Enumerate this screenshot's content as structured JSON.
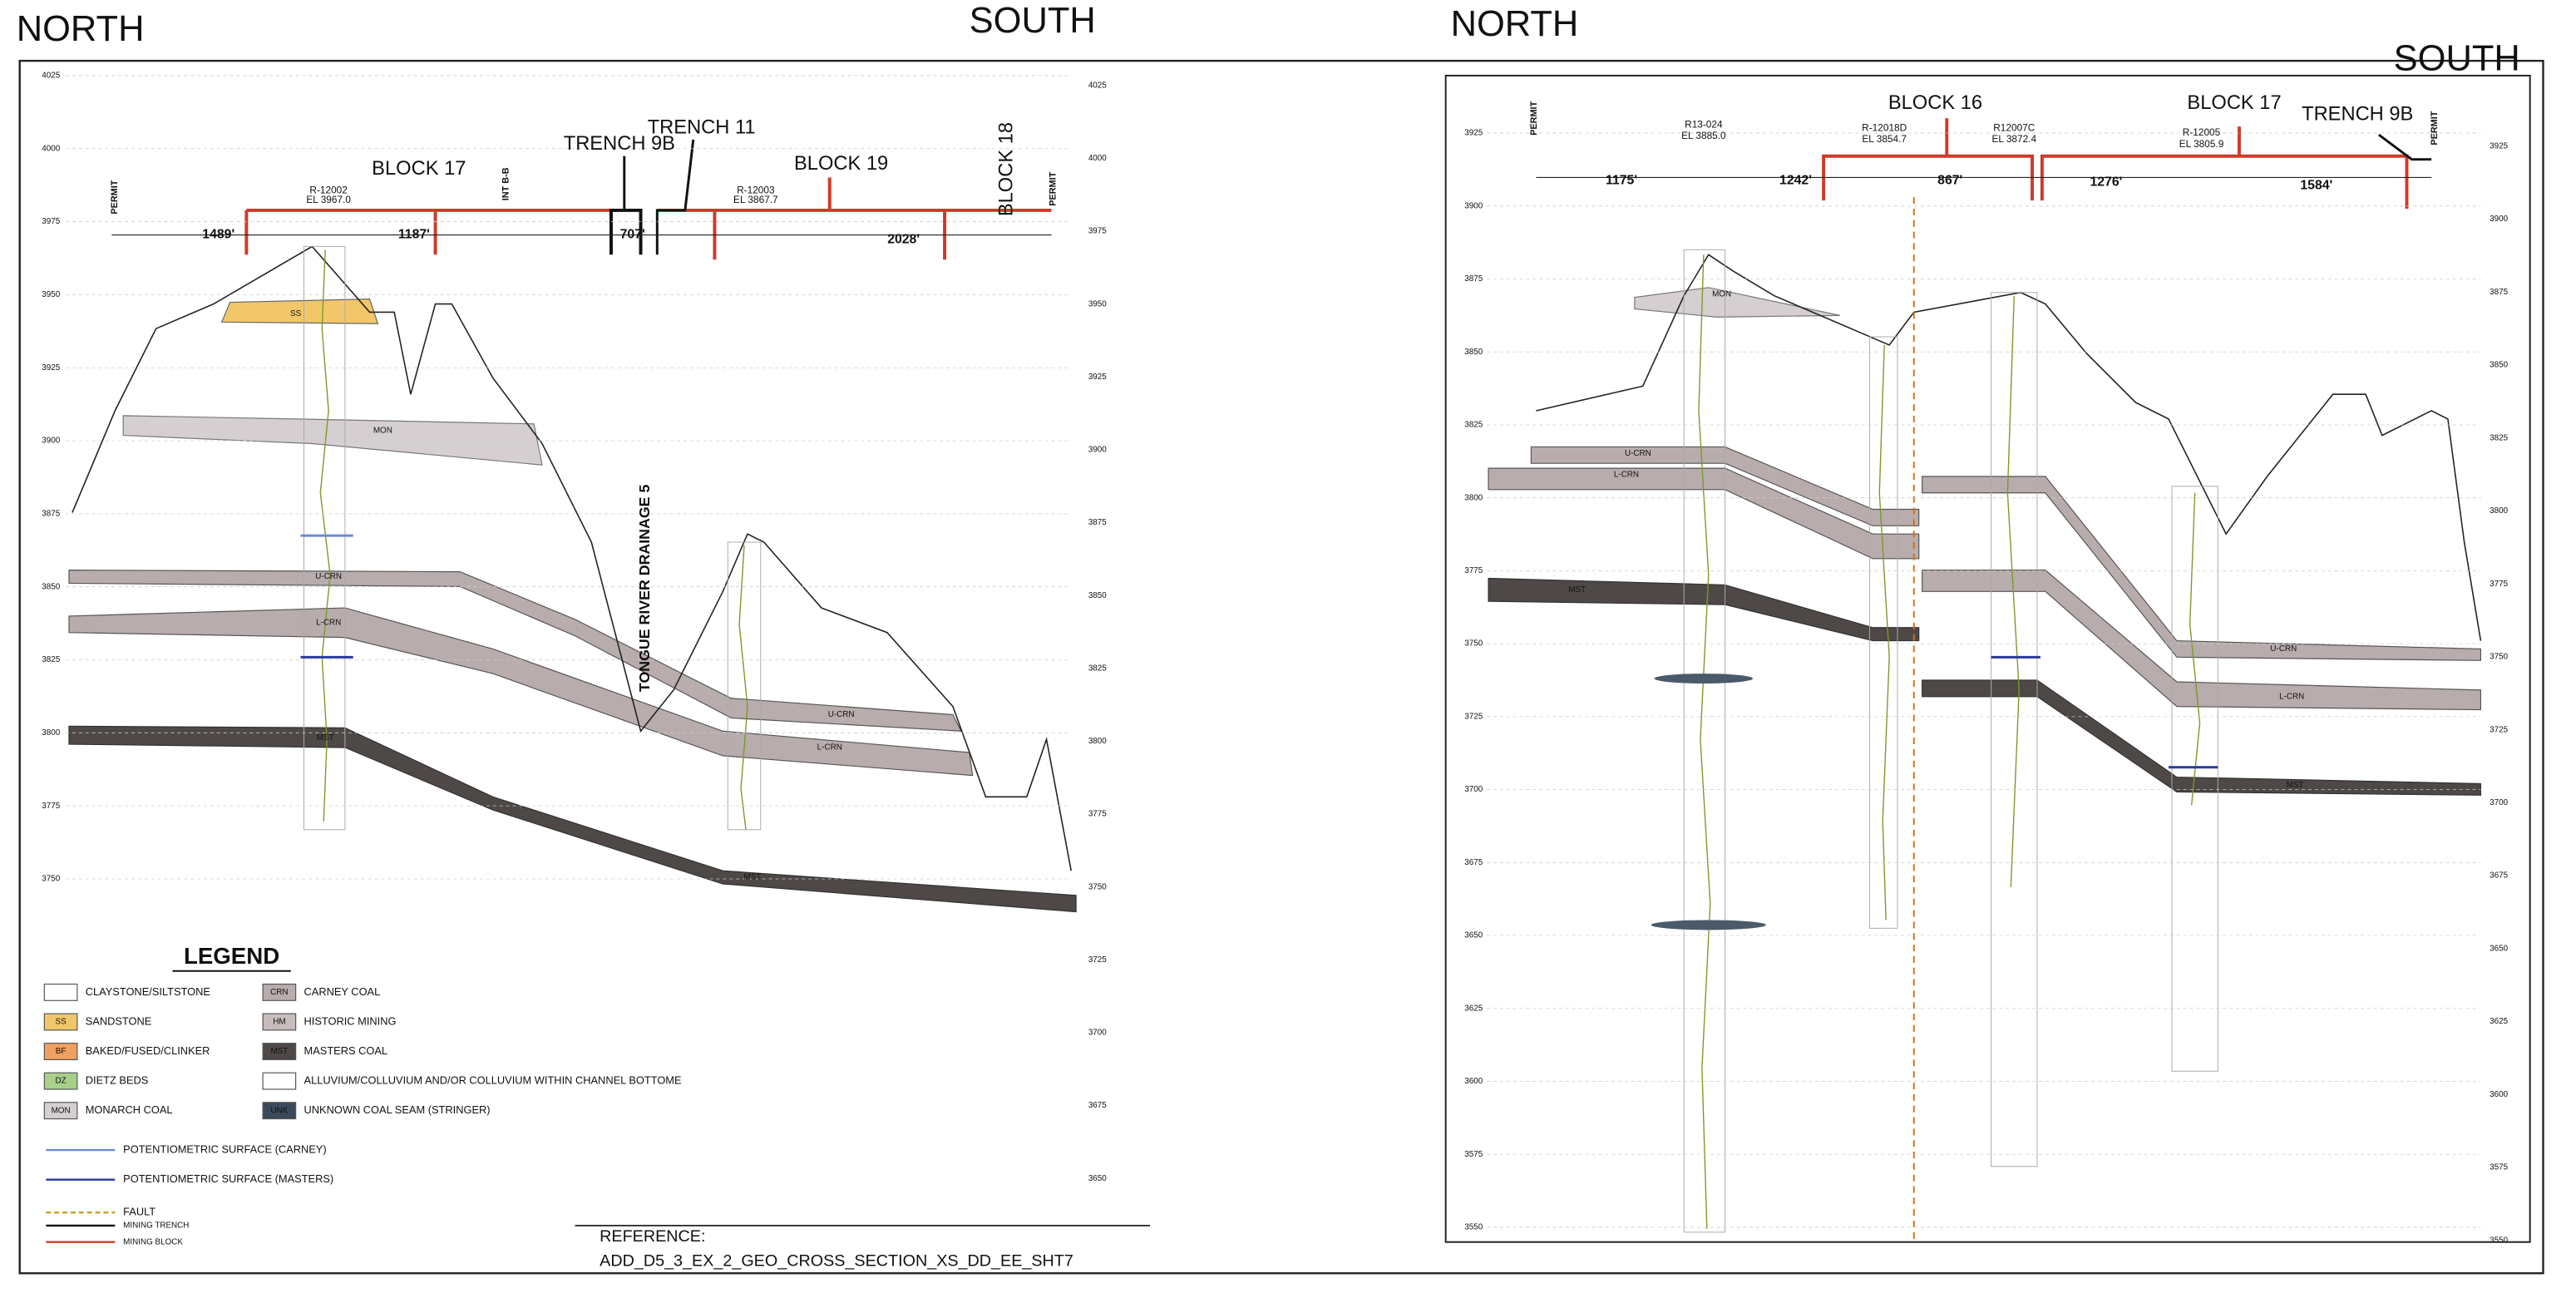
{
  "left_panel": {
    "north": "NORTH",
    "south": "SOUTH",
    "left_axis": [
      4025,
      4000,
      3975,
      3950,
      3925,
      3900,
      3875,
      3850,
      3825,
      3800,
      3775,
      3750
    ],
    "right_axis": [
      4025,
      4000,
      3975,
      3950,
      3925,
      3900,
      3875,
      3850,
      3825,
      3800,
      3775,
      3750,
      3725,
      3700,
      3675,
      3650
    ],
    "labels": [
      "PERMIT",
      "BLOCK 17",
      "R-12002",
      "EL 3967.0",
      "INT B-B",
      "TRENCH 9B",
      "TRENCH 11",
      "BLOCK 19",
      "R-12003",
      "EL 3867.7",
      "BLOCK 18",
      "PERMIT",
      "1489'",
      "1187'",
      "707'",
      "2028'",
      "SS",
      "MON",
      "U-CRN",
      "L-CRN",
      "MST",
      "U-CRN",
      "L-CRN",
      "MST",
      "TONGUE RIVER DRAINAGE 5"
    ],
    "reference": "REFERENCE:",
    "reference_file": "ADD_D5_3_EX_2_GEO_CROSS_SECTION_XS_DD_EE_SHT7"
  },
  "legend": {
    "title": "LEGEND",
    "items": [
      {
        "label": "CLAYSTONE/SILTSTONE"
      },
      {
        "code": "SS",
        "label": "SANDSTONE"
      },
      {
        "code": "BF",
        "label": "BAKED/FUSED/CLINKER"
      },
      {
        "code": "DZ",
        "label": "DIETZ BEDS"
      },
      {
        "code": "MON",
        "label": "MONARCH COAL"
      },
      {
        "code": "CRN",
        "label": "CARNEY COAL"
      },
      {
        "code": "HM",
        "label": "HISTORIC MINING"
      },
      {
        "code": "MST",
        "label": "MASTERS COAL"
      },
      {
        "label": "ALLUVIUM/COLLUVIUM AND/OR COLLUVIUM WITHIN CHANNEL BOTTOME"
      },
      {
        "code": "UNK",
        "label": "UNKNOWN COAL SEAM (STRINGER)"
      }
    ],
    "lines": [
      "POTENTIOMETRIC SURFACE (CARNEY)",
      "POTENTIOMETRIC SURFACE (MASTERS)",
      "FAULT",
      "MINING TRENCH",
      "MINING BLOCK"
    ]
  },
  "right_panel": {
    "north": "NORTH",
    "south": "SOUTH",
    "left_axis": [
      3925,
      3900,
      3875,
      3850,
      3825,
      3800,
      3775,
      3750,
      3725,
      3700,
      3675,
      3650,
      3625,
      3600,
      3575,
      3550
    ],
    "right_axis": [
      3925,
      3900,
      3875,
      3850,
      3825,
      3800,
      3775,
      3750,
      3725,
      3700,
      3675,
      3650,
      3625,
      3600,
      3575,
      3550
    ],
    "labels": [
      "PERMIT",
      "R13-024",
      "EL 3885.0",
      "BLOCK 16",
      "R-12018D",
      "EL 3854.7",
      "R12007C",
      "EL 3872.4",
      "BLOCK 17",
      "R-12005",
      "EL 3805.9",
      "TRENCH 9B",
      "PERMIT",
      "1175'",
      "1242'",
      "867'",
      "1276'",
      "1584'",
      "MON",
      "U-CRN",
      "L-CRN",
      "MST",
      "U-CRN",
      "L-CRN",
      "MST"
    ]
  }
}
